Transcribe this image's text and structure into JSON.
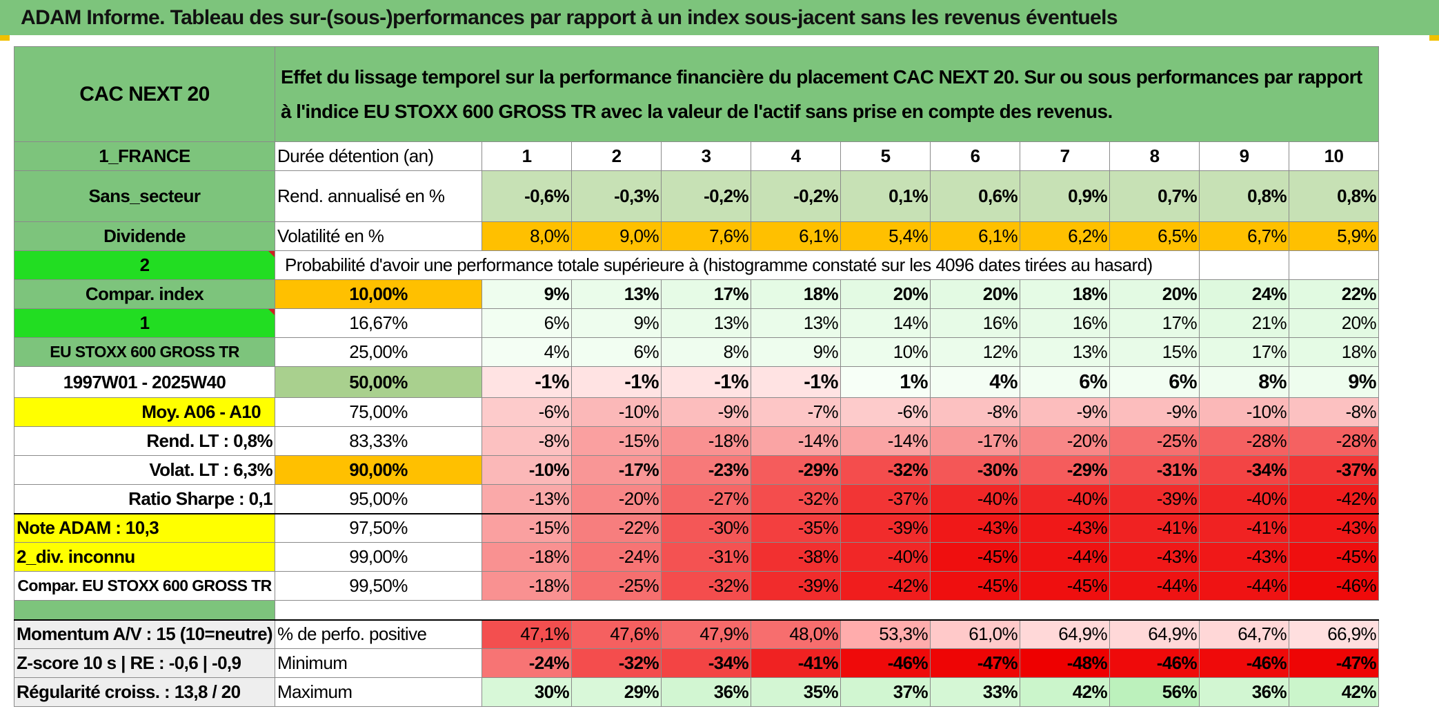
{
  "title": "ADAM Informe. Tableau des sur-(sous-)performances par rapport à un index sous-jacent sans les revenus éventuels",
  "fund": {
    "name": "CAC NEXT 20",
    "country": "1_FRANCE",
    "sector": "Sans_secteur",
    "type": "Dividende",
    "selector_value": "2",
    "compar_index_label": "Compar. index",
    "index_selector": "1",
    "index_name": "EU STOXX 600 GROSS TR",
    "period": "1997W01 - 2025W40",
    "avg_label": "Moy. A06 - A10",
    "rend_lt": "Rend. LT :   0,8%",
    "volat_lt": "Volat. LT :   6,3%",
    "sharpe": "Ratio Sharpe :   0,1",
    "note": "Note ADAM : 10,3",
    "div": "2_div. inconnu",
    "compar": "Compar. EU STOXX 600 GROSS TR",
    "momentum": "Momentum A/V : 15 (10=neutre)",
    "zscore": "Z-score 10 s | RE : -0,6 | -0,9",
    "regularity": "Régularité croiss. : 13,8 / 20"
  },
  "description": "Effet du lissage temporel sur la performance financière du placement CAC NEXT 20. Sur ou sous performances par rapport à l'indice EU STOXX 600 GROSS TR avec la valeur de l'actif sans prise en compte des revenus.",
  "labels": {
    "duration": "Durée détention (an)",
    "rend": "Rend. annualisé en %",
    "vol": "Volatilité en %",
    "proba": "Probabilité d'avoir une performance totale supérieure à (histogramme constaté sur les 4096 dates tirées au hasard)",
    "pos": "% de perfo. positive",
    "min": "Minimum",
    "max": "Maximum"
  },
  "years": [
    "1",
    "2",
    "3",
    "4",
    "5",
    "6",
    "7",
    "8",
    "9",
    "10"
  ],
  "rend": [
    "-0,6%",
    "-0,3%",
    "-0,2%",
    "-0,2%",
    "0,1%",
    "0,6%",
    "0,9%",
    "0,7%",
    "0,8%",
    "0,8%"
  ],
  "vol": [
    "8,0%",
    "9,0%",
    "7,6%",
    "6,1%",
    "5,4%",
    "6,1%",
    "6,2%",
    "6,5%",
    "6,7%",
    "5,9%"
  ],
  "prob_rows": [
    {
      "threshold": "10,00%",
      "values": [
        "9%",
        "13%",
        "17%",
        "18%",
        "20%",
        "20%",
        "18%",
        "20%",
        "24%",
        "22%"
      ]
    },
    {
      "threshold": "16,67%",
      "values": [
        "6%",
        "9%",
        "13%",
        "13%",
        "14%",
        "16%",
        "16%",
        "17%",
        "21%",
        "20%"
      ]
    },
    {
      "threshold": "25,00%",
      "values": [
        "4%",
        "6%",
        "8%",
        "9%",
        "10%",
        "12%",
        "13%",
        "15%",
        "17%",
        "18%"
      ]
    },
    {
      "threshold": "50,00%",
      "values": [
        "-1%",
        "-1%",
        "-1%",
        "-1%",
        "1%",
        "4%",
        "6%",
        "6%",
        "8%",
        "9%"
      ]
    },
    {
      "threshold": "75,00%",
      "values": [
        "-6%",
        "-10%",
        "-9%",
        "-7%",
        "-6%",
        "-8%",
        "-9%",
        "-9%",
        "-10%",
        "-8%"
      ]
    },
    {
      "threshold": "83,33%",
      "values": [
        "-8%",
        "-15%",
        "-18%",
        "-14%",
        "-14%",
        "-17%",
        "-20%",
        "-25%",
        "-28%",
        "-28%"
      ]
    },
    {
      "threshold": "90,00%",
      "values": [
        "-10%",
        "-17%",
        "-23%",
        "-29%",
        "-32%",
        "-30%",
        "-29%",
        "-31%",
        "-34%",
        "-37%"
      ]
    },
    {
      "threshold": "95,00%",
      "values": [
        "-13%",
        "-20%",
        "-27%",
        "-32%",
        "-37%",
        "-40%",
        "-40%",
        "-39%",
        "-40%",
        "-42%"
      ]
    },
    {
      "threshold": "97,50%",
      "values": [
        "-15%",
        "-22%",
        "-30%",
        "-35%",
        "-39%",
        "-43%",
        "-43%",
        "-41%",
        "-41%",
        "-43%"
      ]
    },
    {
      "threshold": "99,00%",
      "values": [
        "-18%",
        "-24%",
        "-31%",
        "-38%",
        "-40%",
        "-45%",
        "-44%",
        "-43%",
        "-43%",
        "-45%"
      ]
    },
    {
      "threshold": "99,50%",
      "values": [
        "-18%",
        "-25%",
        "-32%",
        "-39%",
        "-42%",
        "-45%",
        "-45%",
        "-44%",
        "-44%",
        "-46%"
      ]
    }
  ],
  "pos": [
    "47,1%",
    "47,6%",
    "47,9%",
    "48,0%",
    "53,3%",
    "61,0%",
    "64,9%",
    "64,9%",
    "64,7%",
    "66,9%"
  ],
  "min": [
    "-24%",
    "-32%",
    "-34%",
    "-41%",
    "-46%",
    "-47%",
    "-48%",
    "-46%",
    "-46%",
    "-47%"
  ],
  "max": [
    "30%",
    "29%",
    "36%",
    "35%",
    "37%",
    "33%",
    "42%",
    "56%",
    "36%",
    "42%"
  ],
  "colors": {
    "title_bg": "#7dc47c",
    "orange": "#ffc000",
    "yellow": "#ffff00",
    "lime": "#22dd22",
    "red_text": "#d81d1d"
  }
}
